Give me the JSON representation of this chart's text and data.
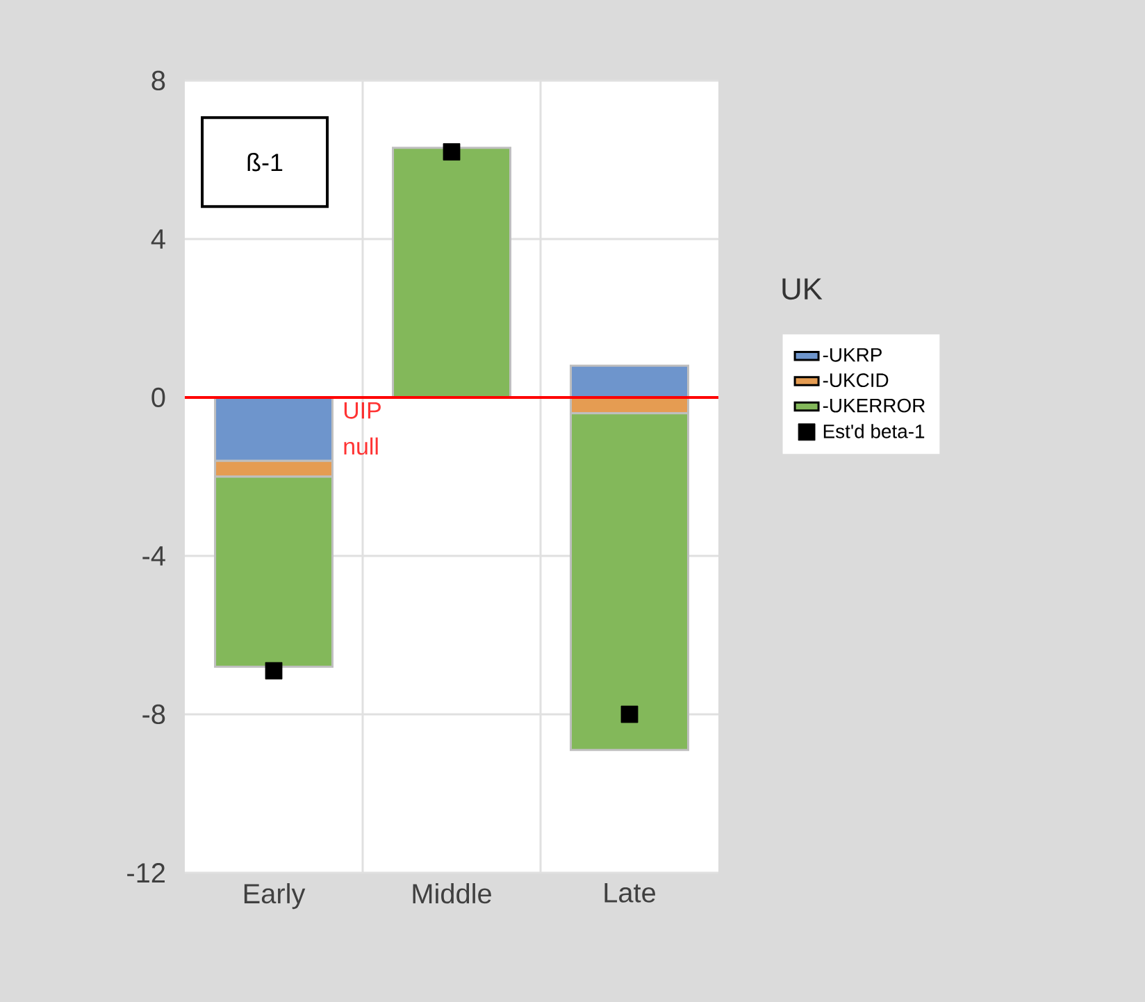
{
  "chart_data": {
    "type": "bar",
    "stacked": true,
    "legend_title": "UK",
    "categories": [
      "Early",
      "Middle",
      "Late"
    ],
    "series": [
      {
        "name": "-UKRP",
        "color": "#6e95cc",
        "values": [
          -1.6,
          0,
          0.8
        ]
      },
      {
        "name": "-UKCID",
        "color": "#e59c52",
        "values": [
          -0.4,
          0,
          -0.4
        ]
      },
      {
        "name": "-UKERROR",
        "color": "#83b85a",
        "values": [
          -4.8,
          6.3,
          -8.5
        ]
      },
      {
        "name": "Est'd beta-1",
        "type": "scatter",
        "marker": "square",
        "color": "#000000",
        "values": [
          -6.9,
          6.2,
          -8.0
        ]
      }
    ],
    "ylim": [
      -12,
      8
    ],
    "yticks": [
      -12,
      -8,
      -4,
      0,
      4,
      8
    ],
    "grid": true,
    "legend": "right",
    "ref_lines": [
      {
        "axis": "y",
        "value": 0,
        "label": "UIP null",
        "color": "#ff0000"
      }
    ],
    "annotations": [
      "ß-1"
    ]
  }
}
